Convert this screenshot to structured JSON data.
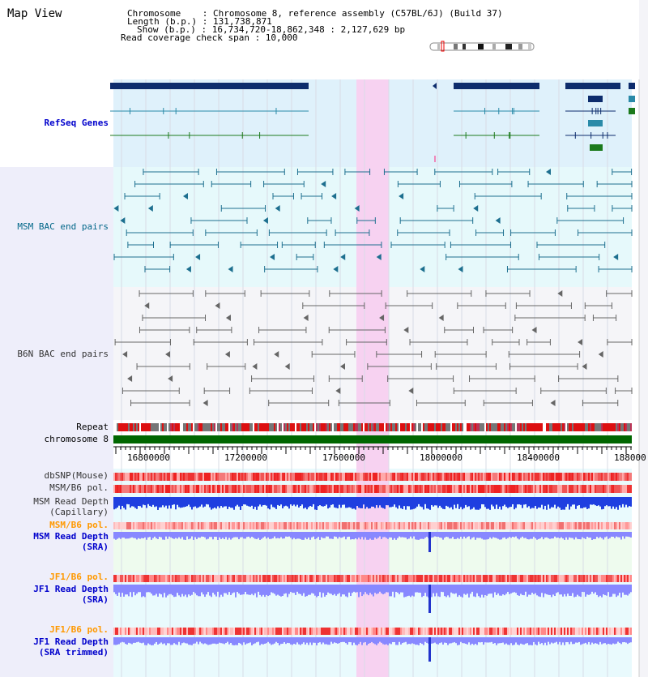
{
  "header": {
    "view_title": "Map View",
    "chromosome_line": "Chromosome    : Chromosome 8, reference assembly (C57BL/6J) (Build 37)",
    "length_line": "Length (b.p.) : 131,738,871",
    "show_line": "Show (b.p.) : 16,734,720-18,862,348 : 2,127,629 bp",
    "span_line": "Read coverage check span : 10,000"
  },
  "tracks": {
    "refseq": "RefSeq Genes",
    "msm_bac": "MSM BAC end pairs",
    "b6n_bac": "B6N BAC end pairs",
    "repeat": "Repeat",
    "chromosome": "chromosome 8",
    "dbsnp": "dbSNP(Mouse)",
    "msm_b6_pol_1": "MSM/B6 pol.",
    "msm_depth_cap_1": "MSM Read Depth",
    "msm_depth_cap_2": "(Capillary)",
    "msm_b6_pol_2": "MSM/B6 pol.",
    "msm_depth_sra_1": "MSM Read Depth",
    "msm_depth_sra_2": "(SRA)",
    "jf1_b6_pol_1": "JF1/B6 pol.",
    "jf1_depth_sra_1": "JF1 Read Depth",
    "jf1_depth_sra_2": "(SRA)",
    "jf1_b6_pol_2": "JF1/B6 pol.",
    "jf1_depth_trim_1": "JF1 Read Depth",
    "jf1_depth_trim_2": "(SRA trimmed)"
  },
  "axis": {
    "ticks": [
      "16800000",
      "17200000",
      "17600000",
      "18000000",
      "18400000",
      "188000"
    ]
  },
  "colors": {
    "refseq_band": "#dff1fb",
    "msm_band": "#e6f9fb",
    "b6n_band": "#f5f5f8",
    "highlight": "#f7d2f1",
    "gene_dark": "#0d2c6c",
    "gene_teal": "#2a8aa8",
    "gene_green": "#1c7a1c",
    "chromosome_bar": "#006600",
    "snp_red": "#ee3333",
    "depth_blue": "#1f3fe0",
    "depth_light": "#8888ff",
    "left_strip": "#eeeefa"
  }
}
